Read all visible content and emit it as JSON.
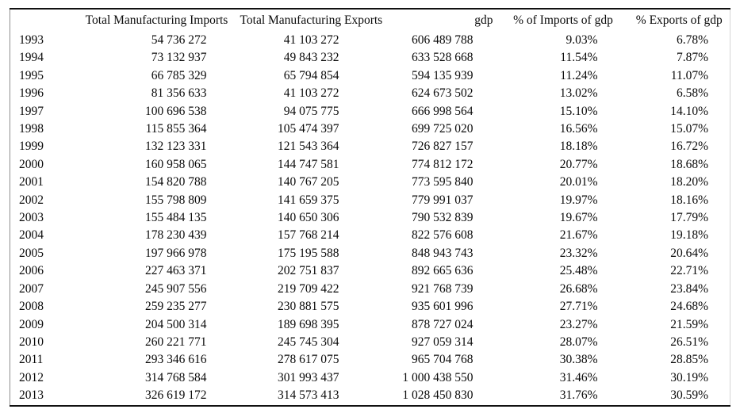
{
  "table": {
    "columns": [
      "",
      "Total Manufacturing Imports",
      "Total Manufacturing Exports",
      "gdp",
      "% of Imports of gdp",
      "% Exports of gdp"
    ],
    "rows": [
      [
        "1993",
        "54 736 272",
        "41 103 272",
        "606 489 788",
        "9.03%",
        "6.78%"
      ],
      [
        "1994",
        "73 132 937",
        "49 843 232",
        "633 528 668",
        "11.54%",
        "7.87%"
      ],
      [
        "1995",
        "66 785 329",
        "65 794 854",
        "594 135 939",
        "11.24%",
        "11.07%"
      ],
      [
        "1996",
        "81 356 633",
        "41 103 272",
        "624 673 502",
        "13.02%",
        "6.58%"
      ],
      [
        "1997",
        "100 696 538",
        "94 075 775",
        "666 998 564",
        "15.10%",
        "14.10%"
      ],
      [
        "1998",
        "115 855 364",
        "105 474 397",
        "699 725 020",
        "16.56%",
        "15.07%"
      ],
      [
        "1999",
        "132 123 331",
        "121 543 364",
        "726 827 157",
        "18.18%",
        "16.72%"
      ],
      [
        "2000",
        "160 958 065",
        "144 747 581",
        "774 812 172",
        "20.77%",
        "18.68%"
      ],
      [
        "2001",
        "154 820 788",
        "140 767 205",
        "773 595 840",
        "20.01%",
        "18.20%"
      ],
      [
        "2002",
        "155 798 809",
        "141 659 375",
        "779 991 037",
        "19.97%",
        "18.16%"
      ],
      [
        "2003",
        "155 484 135",
        "140 650 306",
        "790 532 839",
        "19.67%",
        "17.79%"
      ],
      [
        "2004",
        "178 230 439",
        "157 768 214",
        "822 576 608",
        "21.67%",
        "19.18%"
      ],
      [
        "2005",
        "197 966 978",
        "175 195 588",
        "848 943 743",
        "23.32%",
        "20.64%"
      ],
      [
        "2006",
        "227 463 371",
        "202 751 837",
        "892 665 636",
        "25.48%",
        "22.71%"
      ],
      [
        "2007",
        "245 907 556",
        "219 709 422",
        "921 768 739",
        "26.68%",
        "23.84%"
      ],
      [
        "2008",
        "259 235 277",
        "230 881 575",
        "935 601 996",
        "27.71%",
        "24.68%"
      ],
      [
        "2009",
        "204 500 314",
        "189 698 395",
        "878 727 024",
        "23.27%",
        "21.59%"
      ],
      [
        "2010",
        "260 221 771",
        "245 745 304",
        "927 059 314",
        "28.07%",
        "26.51%"
      ],
      [
        "2011",
        "293 346 616",
        "278 617 075",
        "965 704 768",
        "30.38%",
        "28.85%"
      ],
      [
        "2012",
        "314 768 584",
        "301 993 437",
        "1 000 438 550",
        "31.46%",
        "30.19%"
      ],
      [
        "2013",
        "326 619 172",
        "314 573 413",
        "1 028 450 830",
        "31.76%",
        "30.59%"
      ]
    ]
  }
}
